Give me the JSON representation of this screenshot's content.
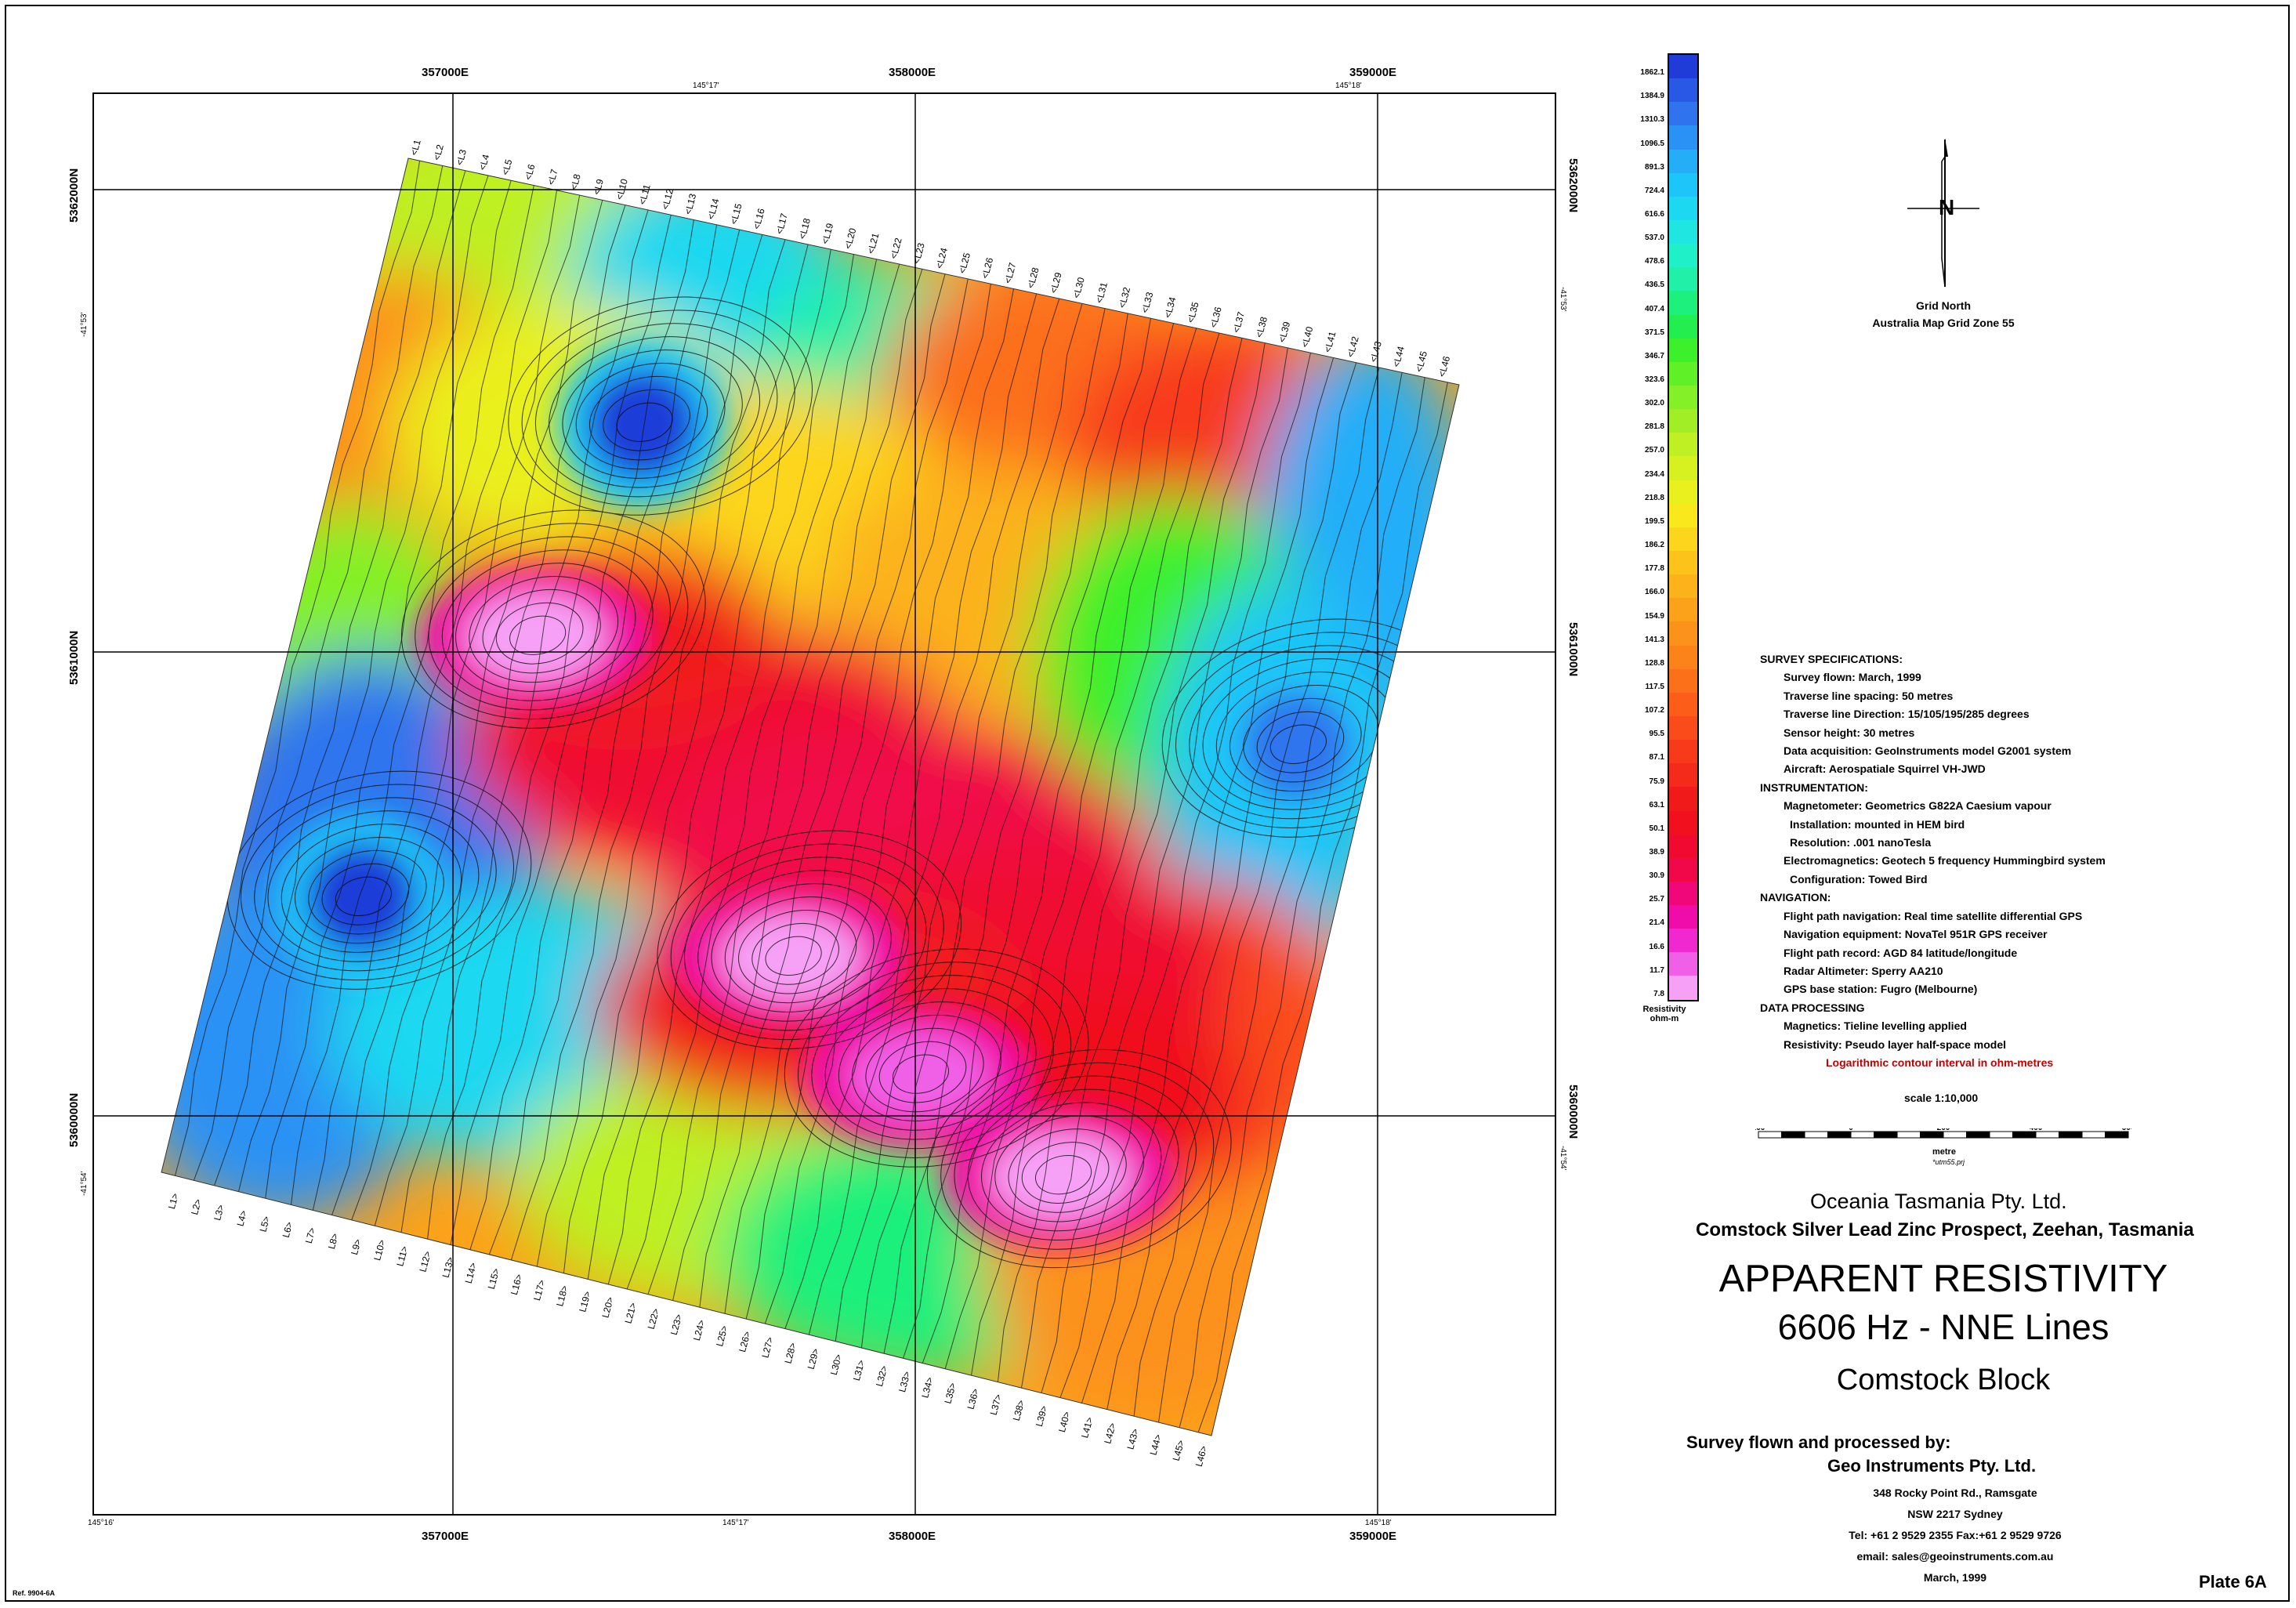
{
  "map": {
    "eastings_top": [
      "357000E",
      "358000E",
      "359000E"
    ],
    "eastings_bottom": [
      "357000E",
      "358000E",
      "359000E"
    ],
    "northings_left": [
      "5362000N",
      "5361000N",
      "5360000N"
    ],
    "northings_right": [
      "5362000N",
      "5361000N",
      "5360000N"
    ],
    "longitudes_top": [
      "145°17'",
      "145°18'"
    ],
    "longitudes_bottom": [
      "145°16'",
      "145°17'",
      "145°18'"
    ],
    "latitudes_left": [
      "-41°53'",
      "-41°54'"
    ],
    "latitudes_right": [
      "-41°53'",
      "-41°54'"
    ],
    "flight_lines_top": [
      "L1",
      "L2",
      "L3",
      "L4",
      "L5",
      "L6",
      "L7",
      "L8",
      "L9",
      "L10",
      "L11",
      "L12",
      "L13",
      "L14",
      "L15",
      "L16",
      "L17",
      "L18",
      "L19",
      "L20",
      "L21",
      "L22",
      "L23",
      "L24",
      "L25",
      "L26",
      "L27",
      "L28",
      "L29",
      "L30",
      "L31",
      "L32",
      "L33",
      "L34",
      "L35",
      "L36",
      "L37",
      "L38",
      "L39",
      "L40",
      "L41",
      "L42",
      "L43",
      "L44",
      "L45",
      "L46"
    ],
    "flight_lines_bottom": [
      "L1",
      "L2",
      "L3",
      "L4",
      "L5",
      "L6",
      "L7",
      "L8",
      "L9",
      "L10",
      "L11",
      "L12",
      "L13",
      "L14",
      "L15",
      "L16",
      "L17",
      "L18",
      "L19",
      "L20",
      "L21",
      "L22",
      "L23",
      "L24",
      "L25",
      "L26",
      "L27",
      "L28",
      "L29",
      "L30",
      "L31",
      "L32",
      "L33",
      "L34",
      "L35",
      "L36",
      "L37",
      "L38",
      "L39",
      "L40",
      "L41",
      "L42",
      "L43",
      "L44",
      "L45",
      "L46"
    ],
    "features": [
      {
        "kind": "conductive-low",
        "level": 7.8,
        "u": 0.22,
        "v": 0.42
      },
      {
        "kind": "conductive-low",
        "level": 7.8,
        "u": 0.52,
        "v": 0.66
      },
      {
        "kind": "conductive-low",
        "level": 11.7,
        "u": 0.66,
        "v": 0.74
      },
      {
        "kind": "conductive-low",
        "level": 7.8,
        "u": 0.81,
        "v": 0.8
      },
      {
        "kind": "resistive-high",
        "level": 1862.1,
        "u": 0.27,
        "v": 0.2
      },
      {
        "kind": "resistive-high",
        "level": 1862.1,
        "u": 0.12,
        "v": 0.7
      },
      {
        "kind": "resistive-high",
        "level": 1310.3,
        "u": 0.93,
        "v": 0.36
      }
    ]
  },
  "colorbar": {
    "title": "Resistivity",
    "unit": "ohm-m",
    "levels": [
      "1862.1",
      "1384.9",
      "1310.3",
      "1096.5",
      "891.3",
      "724.4",
      "616.6",
      "537.0",
      "478.6",
      "436.5",
      "407.4",
      "371.5",
      "346.7",
      "323.6",
      "302.0",
      "281.8",
      "257.0",
      "234.4",
      "218.8",
      "199.5",
      "186.2",
      "177.8",
      "166.0",
      "154.9",
      "141.3",
      "128.8",
      "117.5",
      "107.2",
      "95.5",
      "87.1",
      "75.9",
      "63.1",
      "50.1",
      "38.9",
      "30.9",
      "25.7",
      "21.4",
      "16.6",
      "11.7",
      "7.8"
    ],
    "colors": [
      "#1f3cd8",
      "#2a58e6",
      "#2f74ee",
      "#2a92f4",
      "#24aef8",
      "#1cc6f8",
      "#1cd8f0",
      "#1fe6e0",
      "#20f0c8",
      "#20f0a8",
      "#1ef07c",
      "#22ee50",
      "#3cf02c",
      "#60f028",
      "#84f028",
      "#a2ee26",
      "#bef024",
      "#d6f020",
      "#eaf01e",
      "#f8e81c",
      "#fcd61c",
      "#fcc41a",
      "#fcb21a",
      "#fca21a",
      "#fc921a",
      "#fc821a",
      "#fc701a",
      "#fc5e1a",
      "#fa4c1a",
      "#f83a1a",
      "#f42a1a",
      "#f01a1a",
      "#f0101e",
      "#f00a30",
      "#f00848",
      "#f0087a",
      "#f00ca8",
      "#f028d0",
      "#f060e6",
      "#f6a0f6"
    ]
  },
  "north": {
    "label": "Grid North",
    "zone": "Australia Map Grid Zone 55"
  },
  "specs": {
    "sections": [
      {
        "heading": "SURVEY SPECIFICATIONS:",
        "items": [
          "Survey flown: March, 1999",
          "Traverse line spacing: 50 metres",
          "Traverse line Direction: 15/105/195/285 degrees",
          "Sensor height: 30 metres",
          "Data acquisition: GeoInstruments model G2001 system",
          "Aircraft: Aerospatiale Squirrel VH-JWD"
        ]
      },
      {
        "heading": "INSTRUMENTATION:",
        "items": [
          "Magnetometer: Geometrics G822A Caesium vapour",
          " Installation: mounted in HEM bird",
          " Resolution: .001 nanoTesla",
          "Electromagnetics: Geotech 5 frequency Hummingbird system",
          " Configuration: Towed Bird"
        ]
      },
      {
        "heading": "NAVIGATION:",
        "items": [
          "Flight path navigation: Real time satellite differential GPS",
          "Navigation equipment: NovaTel 951R GPS receiver",
          "Flight path record: AGD 84 latitude/longitude",
          "Radar Altimeter: Sperry AA210",
          "GPS base station: Fugro (Melbourne)"
        ]
      },
      {
        "heading": "DATA PROCESSING",
        "items": [
          "Magnetics: Tieline levelling applied",
          "Resistivity: Pseudo layer half-space model"
        ]
      }
    ],
    "note": "Logarithmic contour interval in ohm-metres"
  },
  "scale": {
    "title": "scale 1:10,000",
    "ticks": [
      "200",
      "0",
      "200",
      "400",
      "600"
    ],
    "unit": "metre",
    "projection": "*utm55.prj"
  },
  "titles": {
    "company": "Oceania Tasmania Pty. Ltd.",
    "prospect": "Comstock Silver Lead Zinc Prospect, Zeehan, Tasmania",
    "title1": "APPARENT RESISTIVITY",
    "title2": "6606 Hz - NNE Lines",
    "title3": "Comstock Block"
  },
  "credits": {
    "flown_by": "Survey flown and processed by:",
    "firm": "Geo Instruments Pty. Ltd.",
    "address": [
      "348 Rocky Point Rd., Ramsgate",
      "NSW 2217 Sydney",
      "Tel: +61 2 9529 2355  Fax:+61 2 9529 9726",
      "email: sales@geoinstruments.com.au",
      "March, 1999"
    ]
  },
  "plate": "Plate 6A",
  "ref": "Ref. 9904-6A"
}
